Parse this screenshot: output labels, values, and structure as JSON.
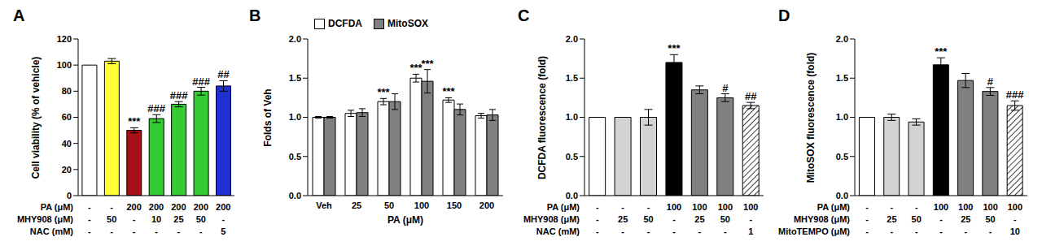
{
  "chart_data": [
    {
      "type": "bar",
      "title": "A",
      "y_label": "Cell viability (% of vehicle)",
      "categories": [
        null,
        null,
        null,
        null,
        null,
        null,
        null
      ],
      "values": [
        100,
        103,
        50,
        59,
        70,
        80,
        84
      ],
      "errors": [
        0,
        2,
        2,
        3,
        2,
        3,
        4
      ],
      "annotations": [
        null,
        null,
        "***",
        "###",
        "###",
        "###",
        "##"
      ],
      "colors": [
        "#ffffff",
        "#ffff33",
        "#a50f15",
        "#33cc33",
        "#33cc33",
        "#33cc33",
        "#1f2fd0"
      ],
      "ylim": [
        0,
        120
      ],
      "yticks": [
        0,
        20,
        40,
        60,
        80,
        100,
        120
      ],
      "table": [
        {
          "label": "PA (μM)",
          "cells": [
            "-",
            "-",
            "200",
            "200",
            "200",
            "200",
            "200"
          ]
        },
        {
          "label": "MHY908 (μM)",
          "cells": [
            "-",
            "50",
            "-",
            "10",
            "25",
            "50",
            "-"
          ]
        },
        {
          "label": "NAC (mM)",
          "cells": [
            "-",
            "-",
            "-",
            "-",
            "-",
            "-",
            "5"
          ]
        }
      ]
    },
    {
      "type": "bar",
      "title": "B",
      "y_label": "Folds of Veh",
      "x_label": "PA (μM)",
      "categories": [
        "Veh",
        "25",
        "50",
        "100",
        "150",
        "200"
      ],
      "series": [
        {
          "name": "DCFDA",
          "color": "#ffffff",
          "values": [
            1.0,
            1.05,
            1.2,
            1.5,
            1.22,
            1.02
          ],
          "errors": [
            0.01,
            0.04,
            0.04,
            0.05,
            0.03,
            0.03
          ],
          "annotations": [
            null,
            null,
            "***",
            "***",
            "***",
            null
          ]
        },
        {
          "name": "MitoSOX",
          "color": "#808080",
          "values": [
            1.0,
            1.06,
            1.2,
            1.46,
            1.1,
            1.03
          ],
          "errors": [
            0.01,
            0.05,
            0.1,
            0.15,
            0.07,
            0.07
          ],
          "annotations": [
            null,
            null,
            null,
            "***",
            null,
            null
          ]
        }
      ],
      "ylim": [
        0,
        2
      ],
      "yticks": [
        {
          "value": 0,
          "label": "0.0"
        },
        {
          "value": 0.5,
          "label": "0.5"
        },
        {
          "value": 1,
          "label": "1.0"
        },
        {
          "value": 1.5,
          "label": "1.5"
        },
        {
          "value": 2,
          "label": "2.0"
        }
      ],
      "legend": "top-left"
    },
    {
      "type": "bar",
      "title": "C",
      "y_label": "DCFDA fluorescence (fold)",
      "categories": [
        null,
        null,
        null,
        null,
        null,
        null,
        null
      ],
      "values": [
        1.0,
        1.0,
        1.0,
        1.7,
        1.35,
        1.25,
        1.15
      ],
      "errors": [
        0,
        0,
        0.1,
        0.1,
        0.05,
        0.05,
        0.04
      ],
      "annotations": [
        null,
        null,
        null,
        "***",
        null,
        "#",
        "##"
      ],
      "colors": [
        "#ffffff",
        "#d3d3d3",
        "#d3d3d3",
        "#000000",
        "#808080",
        "#808080",
        "hatch"
      ],
      "ylim": [
        0,
        2
      ],
      "yticks": [
        {
          "value": 0,
          "label": "0.0"
        },
        {
          "value": 0.5,
          "label": "0.5"
        },
        {
          "value": 1,
          "label": "1.0"
        },
        {
          "value": 1.5,
          "label": "1.5"
        },
        {
          "value": 2,
          "label": "2.0"
        }
      ],
      "table": [
        {
          "label": "PA (μM)",
          "cells": [
            "-",
            "-",
            "-",
            "100",
            "100",
            "100",
            "100"
          ]
        },
        {
          "label": "MHY908 (μM)",
          "cells": [
            "-",
            "25",
            "50",
            "-",
            "25",
            "50",
            "-"
          ]
        },
        {
          "label": "NAC (mM)",
          "cells": [
            "-",
            "-",
            "-",
            "-",
            "-",
            "-",
            "1"
          ]
        }
      ]
    },
    {
      "type": "bar",
      "title": "D",
      "y_label": "MitoSOX fluorescence (fold)",
      "categories": [
        null,
        null,
        null,
        null,
        null,
        null,
        null
      ],
      "values": [
        1.0,
        1.0,
        0.94,
        1.67,
        1.47,
        1.33,
        1.15
      ],
      "errors": [
        0,
        0.04,
        0.04,
        0.09,
        0.09,
        0.05,
        0.06
      ],
      "annotations": [
        null,
        null,
        null,
        "***",
        null,
        "#",
        "###"
      ],
      "colors": [
        "#ffffff",
        "#d3d3d3",
        "#d3d3d3",
        "#000000",
        "#808080",
        "#808080",
        "hatch"
      ],
      "ylim": [
        0,
        2
      ],
      "yticks": [
        {
          "value": 0,
          "label": "0.0"
        },
        {
          "value": 0.5,
          "label": "0.5"
        },
        {
          "value": 1,
          "label": "1.0"
        },
        {
          "value": 1.5,
          "label": "1.5"
        },
        {
          "value": 2,
          "label": "2.0"
        }
      ],
      "table": [
        {
          "label": "PA (μM)",
          "cells": [
            "-",
            "-",
            "-",
            "100",
            "100",
            "100",
            "100"
          ]
        },
        {
          "label": "MHY908 (μM)",
          "cells": [
            "-",
            "25",
            "50",
            "-",
            "25",
            "50",
            "-"
          ]
        },
        {
          "label": "MitoTEMPO (μM)",
          "cells": [
            "-",
            "-",
            "-",
            "-",
            "-",
            "-",
            "10"
          ]
        }
      ]
    }
  ]
}
